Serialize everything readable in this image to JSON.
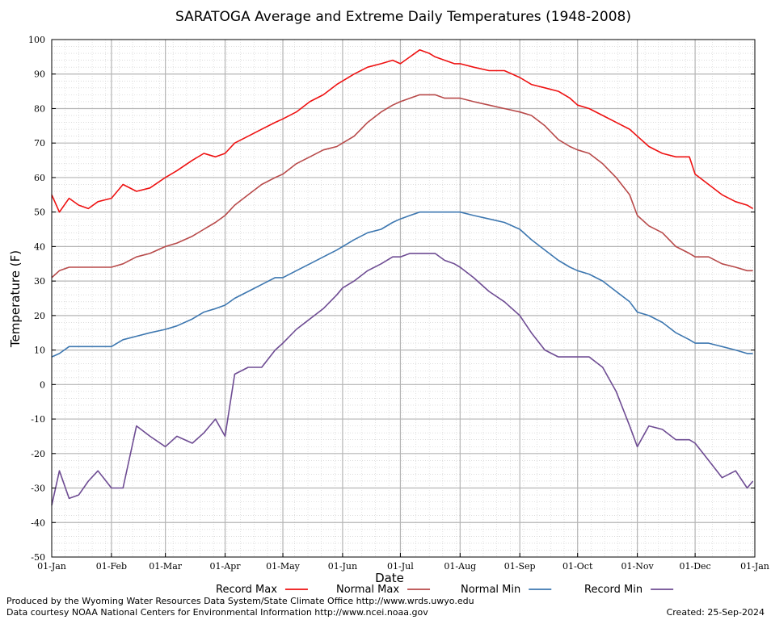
{
  "chart_data": {
    "type": "line",
    "title": "SARATOGA Average and Extreme Daily Temperatures (1948-2008)",
    "xlabel": "Date",
    "ylabel": "Temperature (F)",
    "ylim": [
      -50,
      100
    ],
    "y_ticks": [
      "100",
      "90",
      "80",
      "70",
      "60",
      "50",
      "40",
      "30",
      "20",
      "10",
      "0",
      "-10",
      "-20",
      "-30",
      "-40",
      "-50"
    ],
    "x_ticks": [
      "01-Jan",
      "01-Feb",
      "01-Mar",
      "01-Apr",
      "01-May",
      "01-Jun",
      "01-Jul",
      "01-Aug",
      "01-Sep",
      "01-Oct",
      "01-Nov",
      "01-Dec",
      "01-Jan"
    ],
    "x_tick_day_of_year": [
      1,
      32,
      60,
      91,
      121,
      152,
      182,
      213,
      244,
      274,
      305,
      335,
      366
    ],
    "grid": true,
    "legend_position": "bottom",
    "series": [
      {
        "name": "Record Max",
        "color": "#ee1111",
        "x": [
          1,
          5,
          10,
          15,
          20,
          25,
          32,
          38,
          45,
          52,
          60,
          66,
          74,
          80,
          86,
          91,
          96,
          103,
          110,
          117,
          121,
          128,
          135,
          142,
          149,
          152,
          158,
          165,
          172,
          178,
          182,
          187,
          192,
          197,
          200,
          205,
          210,
          213,
          220,
          228,
          236,
          244,
          250,
          257,
          264,
          270,
          274,
          280,
          287,
          294,
          301,
          305,
          311,
          318,
          325,
          332,
          335,
          342,
          349,
          356,
          362,
          365
        ],
        "y": [
          55,
          50,
          54,
          52,
          51,
          53,
          54,
          58,
          56,
          57,
          60,
          62,
          65,
          67,
          66,
          67,
          70,
          72,
          74,
          76,
          77,
          79,
          82,
          84,
          87,
          88,
          90,
          92,
          93,
          94,
          93,
          95,
          97,
          96,
          95,
          94,
          93,
          93,
          92,
          91,
          91,
          89,
          87,
          86,
          85,
          83,
          81,
          80,
          78,
          76,
          74,
          72,
          69,
          67,
          66,
          66,
          61,
          58,
          55,
          53,
          52,
          51
        ]
      },
      {
        "name": "Normal Max",
        "color": "#b84a4a",
        "x": [
          1,
          5,
          10,
          15,
          20,
          25,
          32,
          38,
          45,
          52,
          60,
          66,
          74,
          80,
          86,
          91,
          96,
          103,
          110,
          117,
          121,
          128,
          135,
          142,
          149,
          152,
          158,
          165,
          172,
          178,
          182,
          187,
          192,
          197,
          200,
          205,
          210,
          213,
          220,
          228,
          236,
          244,
          250,
          257,
          264,
          270,
          274,
          280,
          287,
          294,
          301,
          305,
          311,
          318,
          325,
          332,
          335,
          342,
          349,
          356,
          362,
          365
        ],
        "y": [
          31,
          33,
          34,
          34,
          34,
          34,
          34,
          35,
          37,
          38,
          40,
          41,
          43,
          45,
          47,
          49,
          52,
          55,
          58,
          60,
          61,
          64,
          66,
          68,
          69,
          70,
          72,
          76,
          79,
          81,
          82,
          83,
          84,
          84,
          84,
          83,
          83,
          83,
          82,
          81,
          80,
          79,
          78,
          75,
          71,
          69,
          68,
          67,
          64,
          60,
          55,
          49,
          46,
          44,
          40,
          38,
          37,
          37,
          35,
          34,
          33,
          33
        ]
      },
      {
        "name": "Normal Min",
        "color": "#3d77b0",
        "x": [
          1,
          5,
          10,
          15,
          20,
          25,
          32,
          38,
          45,
          52,
          60,
          66,
          74,
          80,
          86,
          91,
          96,
          103,
          110,
          117,
          121,
          128,
          135,
          142,
          149,
          152,
          158,
          165,
          172,
          178,
          182,
          187,
          192,
          197,
          200,
          205,
          210,
          213,
          220,
          228,
          236,
          244,
          250,
          257,
          264,
          270,
          274,
          280,
          287,
          294,
          301,
          305,
          311,
          318,
          325,
          332,
          335,
          342,
          349,
          356,
          362,
          365
        ],
        "y": [
          8,
          9,
          11,
          11,
          11,
          11,
          11,
          13,
          14,
          15,
          16,
          17,
          19,
          21,
          22,
          23,
          25,
          27,
          29,
          31,
          31,
          33,
          35,
          37,
          39,
          40,
          42,
          44,
          45,
          47,
          48,
          49,
          50,
          50,
          50,
          50,
          50,
          50,
          49,
          48,
          47,
          45,
          42,
          39,
          36,
          34,
          33,
          32,
          30,
          27,
          24,
          21,
          20,
          18,
          15,
          13,
          12,
          12,
          11,
          10,
          9,
          9
        ]
      },
      {
        "name": "Record Min",
        "color": "#6e4c93",
        "x": [
          1,
          5,
          10,
          15,
          20,
          25,
          32,
          38,
          45,
          52,
          60,
          66,
          74,
          80,
          86,
          91,
          96,
          103,
          110,
          117,
          121,
          128,
          135,
          142,
          149,
          152,
          158,
          165,
          172,
          178,
          182,
          187,
          192,
          197,
          200,
          205,
          210,
          213,
          220,
          228,
          236,
          244,
          250,
          257,
          264,
          270,
          274,
          280,
          287,
          294,
          301,
          305,
          311,
          318,
          325,
          332,
          335,
          342,
          349,
          356,
          362,
          365
        ],
        "y": [
          -35,
          -25,
          -33,
          -32,
          -28,
          -25,
          -30,
          -30,
          -12,
          -15,
          -18,
          -15,
          -17,
          -14,
          -10,
          -15,
          3,
          5,
          5,
          10,
          12,
          16,
          19,
          22,
          26,
          28,
          30,
          33,
          35,
          37,
          37,
          38,
          38,
          38,
          38,
          36,
          35,
          34,
          31,
          27,
          24,
          20,
          15,
          10,
          8,
          8,
          8,
          8,
          5,
          -2,
          -12,
          -18,
          -12,
          -13,
          -16,
          -16,
          -17,
          -22,
          -27,
          -25,
          -30,
          -28
        ]
      }
    ]
  },
  "footer": {
    "produced_by": "Produced by the Wyoming Water Resources Data System/State Climate Office http://www.wrds.uwyo.edu",
    "data_courtesy": "Data courtesy NOAA National Centers for Environmental Information http://www.ncei.noaa.gov",
    "created": "Created:  25-Sep-2024"
  }
}
